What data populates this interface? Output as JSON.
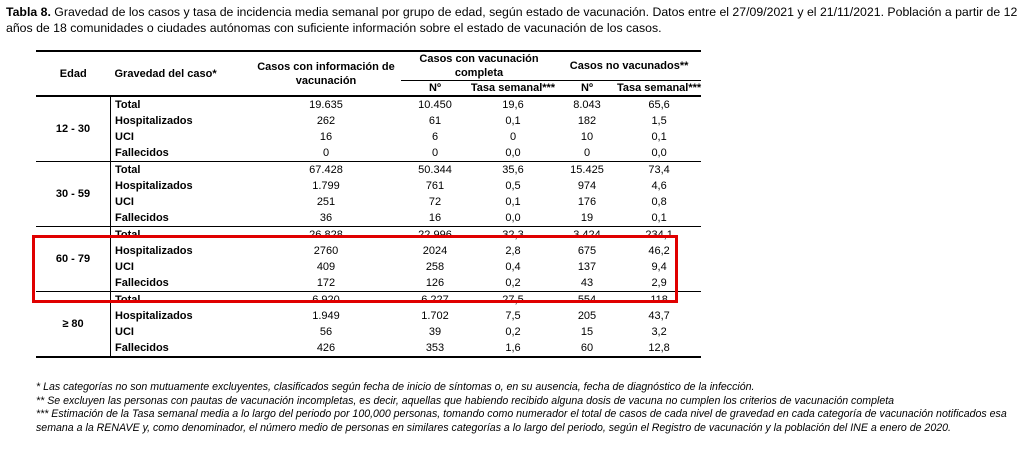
{
  "caption": {
    "lead": "Tabla 8.",
    "text": " Gravedad de los casos y tasa de incidencia media semanal por grupo de edad, según estado de vacunación. Datos entre el 27/09/2021 y el 21/11/2021. Población a partir de 12 años de 18 comunidades o ciudades autónomas con suficiente información sobre el estado de vacunación de los casos."
  },
  "table": {
    "headers": {
      "age": "Edad",
      "severity": "Gravedad del caso*",
      "with_info": "Casos con información de vacunación",
      "complete": "Casos con vacunación completa",
      "unvaccinated": "Casos no vacunados**",
      "num": "Nº",
      "rate": "Tasa semanal***"
    },
    "groups": [
      {
        "age": "12 - 30",
        "rows": [
          {
            "sev": "Total",
            "info": "19.635",
            "cn": "10.450",
            "cr": "19,6",
            "un": "8.043",
            "ur": "65,6"
          },
          {
            "sev": "Hospitalizados",
            "info": "262",
            "cn": "61",
            "cr": "0,1",
            "un": "182",
            "ur": "1,5"
          },
          {
            "sev": "UCI",
            "info": "16",
            "cn": "6",
            "cr": "0",
            "un": "10",
            "ur": "0,1"
          },
          {
            "sev": "Fallecidos",
            "info": "0",
            "cn": "0",
            "cr": "0,0",
            "un": "0",
            "ur": "0,0"
          }
        ]
      },
      {
        "age": "30 - 59",
        "rows": [
          {
            "sev": "Total",
            "info": "67.428",
            "cn": "50.344",
            "cr": "35,6",
            "un": "15.425",
            "ur": "73,4"
          },
          {
            "sev": "Hospitalizados",
            "info": "1.799",
            "cn": "761",
            "cr": "0,5",
            "un": "974",
            "ur": "4,6"
          },
          {
            "sev": "UCI",
            "info": "251",
            "cn": "72",
            "cr": "0,1",
            "un": "176",
            "ur": "0,8"
          },
          {
            "sev": "Fallecidos",
            "info": "36",
            "cn": "16",
            "cr": "0,0",
            "un": "19",
            "ur": "0,1"
          }
        ]
      },
      {
        "age": "60 - 79",
        "rows": [
          {
            "sev": "Total",
            "info": "26.828",
            "cn": "22.996",
            "cr": "32,3",
            "un": "3.424",
            "ur": "234,1"
          },
          {
            "sev": "Hospitalizados",
            "info": "2760",
            "cn": "2024",
            "cr": "2,8",
            "un": "675",
            "ur": "46,2"
          },
          {
            "sev": "UCI",
            "info": "409",
            "cn": "258",
            "cr": "0,4",
            "un": "137",
            "ur": "9,4"
          },
          {
            "sev": "Fallecidos",
            "info": "172",
            "cn": "126",
            "cr": "0,2",
            "un": "43",
            "ur": "2,9"
          }
        ]
      },
      {
        "age": "≥ 80",
        "rows": [
          {
            "sev": "Total",
            "info": "6.920",
            "cn": "6.227",
            "cr": "27,5",
            "un": "554",
            "ur": "118"
          },
          {
            "sev": "Hospitalizados",
            "info": "1.949",
            "cn": "1.702",
            "cr": "7,5",
            "un": "205",
            "ur": "43,7"
          },
          {
            "sev": "UCI",
            "info": "56",
            "cn": "39",
            "cr": "0,2",
            "un": "15",
            "ur": "3,2"
          },
          {
            "sev": "Fallecidos",
            "info": "426",
            "cn": "353",
            "cr": "1,6",
            "un": "60",
            "ur": "12,8"
          }
        ]
      }
    ]
  },
  "highlight": {
    "color": "#e00000",
    "group": "60 - 79"
  },
  "notes": [
    "* Las categorías no son mutuamente excluyentes, clasificados según fecha de inicio de síntomas o, en su ausencia, fecha de diagnóstico de la infección.",
    "** Se excluyen las personas con pautas de vacunación incompletas, es decir, aquellas que habiendo recibido alguna dosis de vacuna no cumplen los criterios de vacunación completa",
    "*** Estimación de la Tasa semanal media a lo largo del periodo por 100,000 personas, tomando como numerador el total de casos de cada nivel de gravedad en cada categoría de vacunación notificados esa semana a la RENAVE y, como denominador, el número medio de personas en similares categorías a lo largo del periodo, según el Registro de vacunación y la población del INE a enero de 2020."
  ]
}
